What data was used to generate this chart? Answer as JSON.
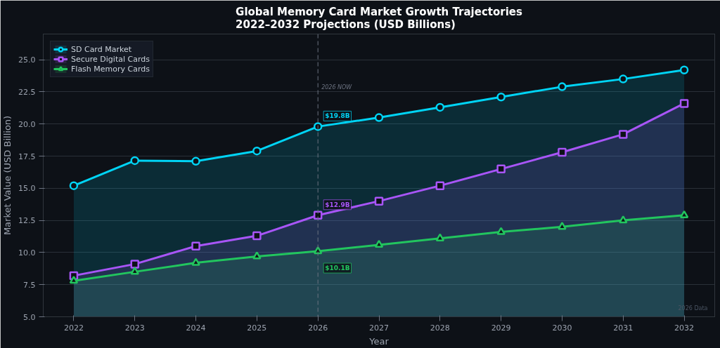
{
  "chart_data": {
    "type": "area",
    "title": "Global Memory Card Market Growth Trajectories\n2022–2032 Projections (USD Billions)",
    "xlabel": "Year",
    "ylabel": "Market Value (USD Billion)",
    "x": [
      2022,
      2023,
      2024,
      2025,
      2026,
      2027,
      2028,
      2029,
      2030,
      2031,
      2032
    ],
    "series": [
      {
        "name": "SD Card Market",
        "color": "#00d4f5",
        "marker": "circle",
        "values": [
          15.2,
          17.15,
          17.1,
          17.9,
          19.8,
          20.5,
          21.3,
          22.1,
          22.9,
          23.5,
          24.2
        ],
        "value_labels": [
          null,
          null,
          null,
          null,
          "$19.8B",
          null,
          null,
          null,
          null,
          null,
          null
        ]
      },
      {
        "name": "Secure Digital Cards",
        "color": "#a855f7",
        "marker": "square",
        "values": [
          8.2,
          9.1,
          10.5,
          11.3,
          12.9,
          14.0,
          15.2,
          16.5,
          17.8,
          19.2,
          21.6
        ],
        "value_labels": [
          null,
          null,
          null,
          null,
          "$12.9B",
          null,
          null,
          null,
          null,
          null,
          null
        ]
      },
      {
        "name": "Flash Memory Cards",
        "color": "#22c55e",
        "marker": "triangle",
        "values": [
          7.8,
          8.5,
          9.2,
          9.7,
          10.1,
          10.6,
          11.1,
          11.6,
          12.0,
          12.5,
          12.9
        ],
        "value_labels": [
          null,
          null,
          null,
          null,
          "$10.1B",
          null,
          null,
          null,
          null,
          null,
          null
        ]
      }
    ],
    "xlim": [
      2021.5,
      2032.5
    ],
    "xticks": [
      2022,
      2023,
      2024,
      2025,
      2026,
      2027,
      2028,
      2029,
      2030,
      2031,
      2032
    ],
    "ylim": [
      5.0,
      27.0
    ],
    "yticks": [
      {
        "value": 5,
        "label": "5.0"
      },
      {
        "value": 7.5,
        "label": "7.5"
      },
      {
        "value": 10,
        "label": "10.0"
      },
      {
        "value": 12.5,
        "label": "12.5"
      },
      {
        "value": 15,
        "label": "15.0"
      },
      {
        "value": 17.5,
        "label": "17.5"
      },
      {
        "value": 20,
        "label": "20.0"
      },
      {
        "value": 22.5,
        "label": "22.5"
      },
      {
        "value": 25,
        "label": "25.0"
      }
    ],
    "grid": "y",
    "legend": "top left",
    "line_style": "solid",
    "ref_lines": [
      {
        "axis": "x",
        "value": 2026,
        "label": "2026 NOW",
        "color": "#6b7280",
        "line_style": "dashed"
      }
    ],
    "annotations": [
      "2026 Data"
    ]
  }
}
